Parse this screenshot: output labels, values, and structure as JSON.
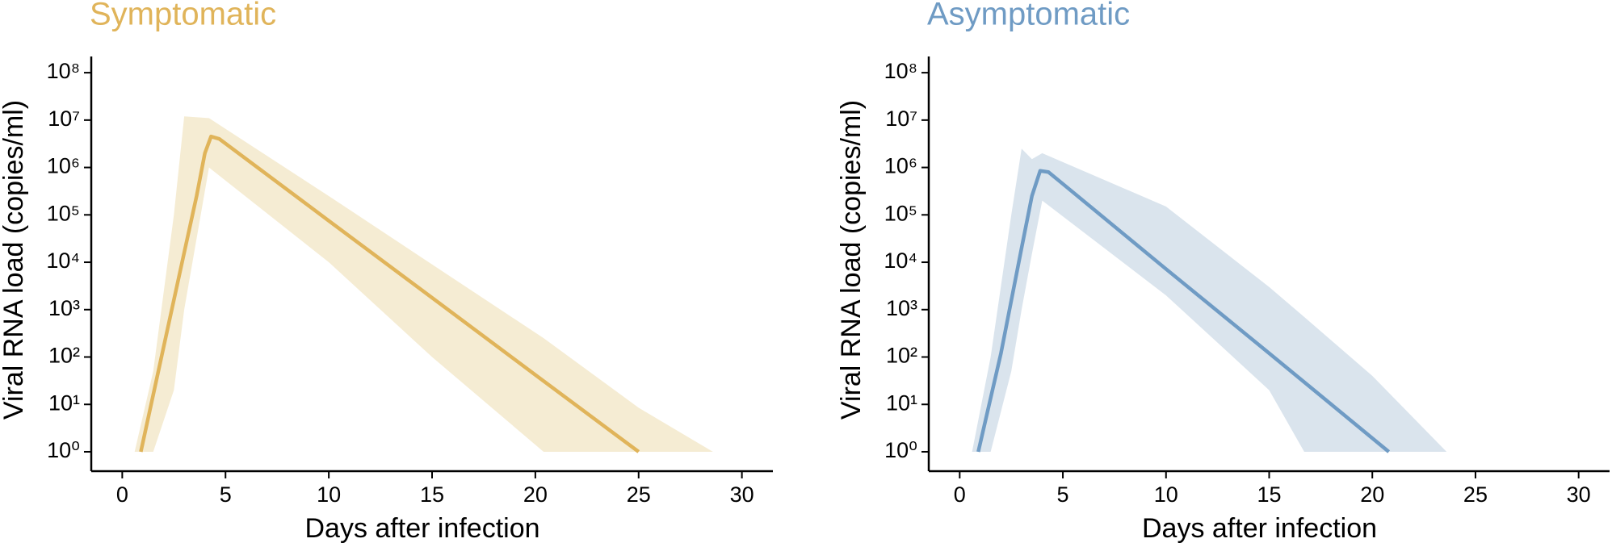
{
  "chart_data": [
    {
      "type": "line",
      "title": "Symptomatic",
      "title_color": "#e0b45a",
      "xlabel": "Days after infection",
      "ylabel": "Viral RNA load (copies/ml)",
      "log_y": true,
      "color": "#e0b45a",
      "band_color": "#f5ecd3",
      "x": [
        0.9,
        2,
        3,
        3.6,
        4,
        4.3,
        4.7,
        5,
        10,
        15,
        20,
        25
      ],
      "values": [
        1,
        160,
        16000,
        250000,
        2000000,
        4500000,
        4000000,
        3200000,
        75000,
        1780,
        42,
        1
      ],
      "band_x": [
        0.6,
        1.5,
        2.5,
        3,
        4.2,
        10,
        15,
        20.4,
        25,
        28.6
      ],
      "band_upper": [
        1,
        50,
        100000,
        12000000,
        11000000,
        250000,
        9000,
        250,
        8.5,
        1
      ],
      "band_lower": [
        1,
        1,
        20,
        1000,
        1000000,
        10000,
        100,
        1,
        1,
        1
      ],
      "xlim": [
        -1.5,
        31.5
      ],
      "xticks": [
        0,
        5,
        10,
        15,
        20,
        25,
        30
      ],
      "ylim": [
        0.39,
        220000000
      ],
      "yticks": [
        {
          "value": 1,
          "label": "10⁰"
        },
        {
          "value": 10,
          "label": "10¹"
        },
        {
          "value": 100,
          "label": "10²"
        },
        {
          "value": 1000,
          "label": "10³"
        },
        {
          "value": 10000,
          "label": "10⁴"
        },
        {
          "value": 100000,
          "label": "10⁵"
        },
        {
          "value": 1000000,
          "label": "10⁶"
        },
        {
          "value": 10000000,
          "label": "10⁷"
        },
        {
          "value": 100000000,
          "label": "10⁸"
        }
      ]
    },
    {
      "type": "line",
      "title": "Asymptomatic",
      "title_color": "#6f9bc4",
      "xlabel": "Days after infection",
      "ylabel": "Viral RNA load (copies/ml)",
      "log_y": true,
      "color": "#6f9bc4",
      "band_color": "#dae4ed",
      "x": [
        0.9,
        2,
        3,
        3.5,
        3.9,
        4.3,
        5,
        10,
        15,
        20.8
      ],
      "values": [
        1,
        120,
        20000,
        250000,
        850000,
        800000,
        450000,
        7200,
        120,
        1
      ],
      "band_x": [
        0.6,
        1.5,
        2.5,
        3,
        3.5,
        4,
        10,
        15,
        16.7,
        20,
        23.6
      ],
      "band_upper": [
        1,
        100,
        100000,
        2500000,
        1500000,
        2000000,
        150000,
        3000,
        700,
        40,
        1
      ],
      "band_lower": [
        1,
        1,
        50,
        1000,
        15000,
        200000,
        2000,
        20,
        1,
        1,
        1
      ],
      "xlim": [
        -1.5,
        31.5
      ],
      "xticks": [
        0,
        5,
        10,
        15,
        20,
        25,
        30
      ],
      "ylim": [
        0.39,
        220000000
      ],
      "yticks": [
        {
          "value": 1,
          "label": "10⁰"
        },
        {
          "value": 10,
          "label": "10¹"
        },
        {
          "value": 100,
          "label": "10²"
        },
        {
          "value": 1000,
          "label": "10³"
        },
        {
          "value": 10000,
          "label": "10⁴"
        },
        {
          "value": 100000,
          "label": "10⁵"
        },
        {
          "value": 1000000,
          "label": "10⁶"
        },
        {
          "value": 10000000,
          "label": "10⁷"
        },
        {
          "value": 100000000,
          "label": "10⁸"
        }
      ]
    }
  ]
}
